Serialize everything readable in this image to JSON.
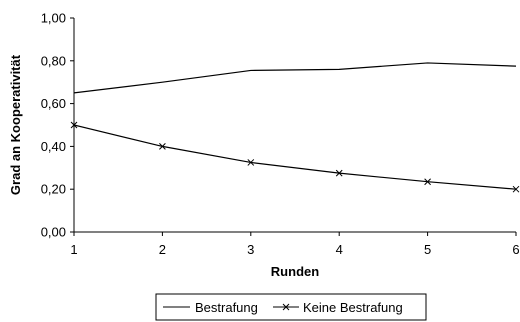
{
  "chart_data": {
    "type": "line",
    "xlabel": "Runden",
    "ylabel": "Grad an Kooperativität",
    "x": [
      1,
      2,
      3,
      4,
      5,
      6
    ],
    "x_tick_labels": [
      "1",
      "2",
      "3",
      "4",
      "5",
      "6"
    ],
    "y_tick_labels": [
      "0,00",
      "0,20",
      "0,40",
      "0,60",
      "0,80",
      "1,00"
    ],
    "xlim": [
      1,
      6
    ],
    "ylim": [
      0,
      1
    ],
    "grid": false,
    "legend_position": "bottom",
    "series": [
      {
        "name": "Bestrafung",
        "values": [
          0.65,
          0.7,
          0.755,
          0.76,
          0.79,
          0.775
        ],
        "marker": "none",
        "color": "#000000"
      },
      {
        "name": "Keine Bestrafung",
        "values": [
          0.5,
          0.4,
          0.325,
          0.275,
          0.235,
          0.2
        ],
        "marker": "x",
        "color": "#000000"
      }
    ]
  }
}
